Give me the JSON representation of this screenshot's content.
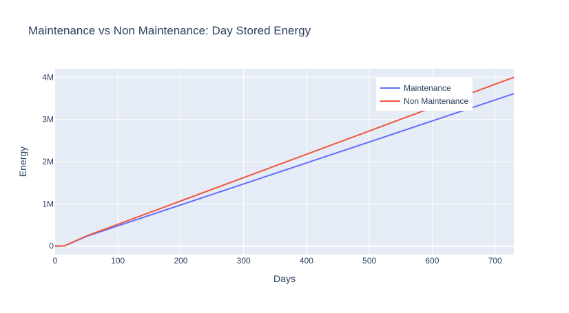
{
  "chart_data": {
    "type": "line",
    "title": "Maintenance vs Non Maintenance: Day Stored Energy",
    "xlabel": "Days",
    "ylabel": "Energy",
    "xlim": [
      0,
      730
    ],
    "ylim": [
      -200000,
      4200000
    ],
    "x_ticks": [
      0,
      100,
      200,
      300,
      400,
      500,
      600,
      700
    ],
    "x_tick_labels": [
      "0",
      "100",
      "200",
      "300",
      "400",
      "500",
      "600",
      "700"
    ],
    "y_ticks": [
      0,
      1000000,
      2000000,
      3000000,
      4000000
    ],
    "y_tick_labels": [
      "0",
      "1M",
      "2M",
      "3M",
      "4M"
    ],
    "grid": true,
    "legend_position": "top-right",
    "series": [
      {
        "name": "Maintenance",
        "color": "#636efa",
        "x": [
          0,
          15,
          50,
          730
        ],
        "y": [
          0,
          5000,
          230000,
          3610000
        ]
      },
      {
        "name": "Non Maintenance",
        "color": "#ef553b",
        "x": [
          0,
          15,
          50,
          730
        ],
        "y": [
          0,
          5000,
          240000,
          4000000
        ]
      }
    ]
  },
  "colors": {
    "plot_background": "#e5ecf6",
    "grid": "#ffffff",
    "text": "#2a3f5f"
  }
}
